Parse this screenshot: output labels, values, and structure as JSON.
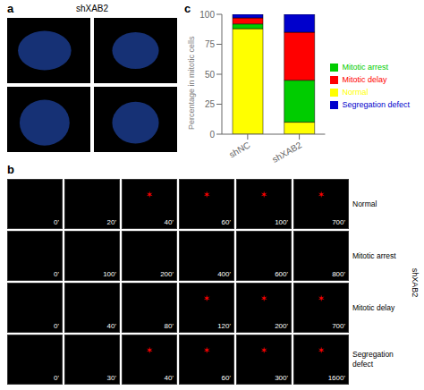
{
  "chart_data": {
    "type": "bar",
    "stacked": true,
    "categories": [
      "shNC",
      "shXAB2"
    ],
    "series": [
      {
        "name": "Normal",
        "color": "#ffff00",
        "values": [
          88,
          10
        ]
      },
      {
        "name": "Mitotic arrest",
        "color": "#00cc00",
        "values": [
          4,
          35
        ]
      },
      {
        "name": "Mitotic delay",
        "color": "#ff0000",
        "values": [
          5,
          40
        ]
      },
      {
        "name": "Segregation defect",
        "color": "#0000cc",
        "values": [
          3,
          15
        ]
      }
    ],
    "ylabel": "Percentage in mitotic cells",
    "ylim": [
      0,
      100
    ],
    "yticks": [
      0,
      25,
      50,
      75,
      100
    ],
    "legend": "right",
    "annotations": [
      {
        "panel": "a",
        "title": "shXAB2"
      },
      {
        "panel": "c"
      },
      {
        "panel": "b",
        "side_label": "shXAB2",
        "rows": [
          {
            "label": "Normal",
            "times": [
              "0'",
              "20'",
              "40'",
              "60'",
              "100'",
              "700'"
            ],
            "marks": [
              null,
              null,
              "✶",
              "✶",
              "✶",
              "✶"
            ]
          },
          {
            "label": "Mitotic arrest",
            "times": [
              "0'",
              "100'",
              "200'",
              "400'",
              "600'",
              "800'"
            ],
            "marks": [
              null,
              null,
              null,
              null,
              null,
              null
            ]
          },
          {
            "label": "Mitotic delay",
            "times": [
              "0'",
              "40'",
              "80'",
              "120'",
              "200'",
              "700'"
            ],
            "marks": [
              null,
              null,
              null,
              "✶",
              "✶",
              "✶"
            ]
          },
          {
            "label": "Segregation\ndefect",
            "times": [
              "0'",
              "30'",
              "40'",
              "60'",
              "300'",
              "1600'"
            ],
            "marks": [
              null,
              null,
              "✶",
              "✶",
              "✶",
              "✶"
            ]
          }
        ]
      }
    ]
  }
}
